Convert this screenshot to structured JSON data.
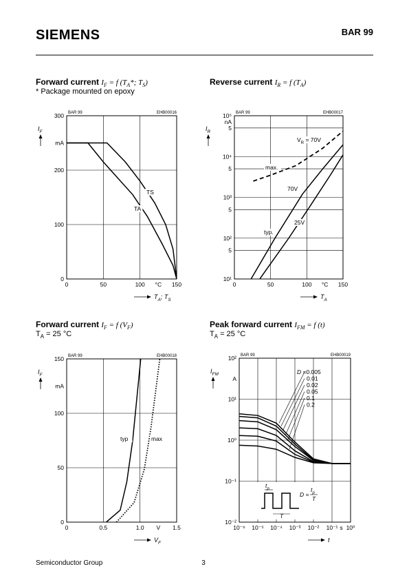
{
  "header": {
    "brand": "SIEMENS",
    "part": "BAR 99"
  },
  "footer": {
    "left": "Semiconductor Group",
    "page": "3"
  },
  "chart_data": [
    {
      "type": "line",
      "title": "Forward current",
      "formula": [
        {
          "text": "I",
          "sub": "F"
        },
        {
          "text": " = f (T",
          "sub": "A"
        },
        {
          "text": "*; T",
          "sub": "S"
        },
        {
          "text": ")"
        }
      ],
      "subtitle": [
        {
          "text": "* Package mounted on epoxy"
        }
      ],
      "part": "BAR 99",
      "code": "EHB00016",
      "ylabel": [
        {
          "text": "I",
          "sub": "F"
        }
      ],
      "xlabel": [
        {
          "text": "T",
          "sub": "A"
        },
        {
          "text": "; T",
          "sub": "S"
        }
      ],
      "y_unit": "mA",
      "x_unit": "°C",
      "xlim": [
        0,
        150
      ],
      "ylim": [
        0,
        300
      ],
      "xticks": [
        0,
        50,
        100,
        150
      ],
      "yticks": [
        0,
        100,
        200,
        300
      ],
      "grid": true,
      "series": [
        {
          "name": "TS",
          "color": "#000000",
          "style": "solid",
          "x": [
            0,
            55,
            80,
            100,
            120,
            135,
            145,
            150
          ],
          "values": [
            250,
            250,
            215,
            180,
            140,
            100,
            55,
            0
          ]
        },
        {
          "name": "TA",
          "color": "#000000",
          "style": "solid",
          "x": [
            0,
            29,
            50,
            70,
            90,
            110,
            130,
            145,
            150
          ],
          "values": [
            250,
            250,
            215,
            185,
            155,
            115,
            65,
            25,
            0
          ]
        }
      ]
    },
    {
      "type": "line",
      "title": "Reverse current",
      "formula": [
        {
          "text": "I",
          "sub": "R"
        },
        {
          "text": " = f (T",
          "sub": "A"
        },
        {
          "text": ")"
        }
      ],
      "part": "BAR 99",
      "code": "EHB00017",
      "ylabel": [
        {
          "text": "I",
          "sub": "R"
        }
      ],
      "xlabel": [
        {
          "text": "T",
          "sub": "A"
        }
      ],
      "y_unit": "nA",
      "x_unit": "°C",
      "xlim": [
        0,
        150
      ],
      "ylim": [
        10,
        100000
      ],
      "ylog": true,
      "xticks": [
        0,
        50,
        100,
        150
      ],
      "yticks": [
        {
          "value": 10,
          "label": "10¹"
        },
        {
          "value": 50,
          "label": "5"
        },
        {
          "value": 100,
          "label": "10²"
        },
        {
          "value": 500,
          "label": "5"
        },
        {
          "value": 1000,
          "label": "10³"
        },
        {
          "value": 5000,
          "label": "5"
        },
        {
          "value": 10000,
          "label": "10⁴"
        },
        {
          "value": 50000,
          "label": "5"
        },
        {
          "value": 100000,
          "label": "10⁵"
        }
      ],
      "grid": true,
      "annotations": [
        [
          {
            "text": "V",
            "sub": "R"
          },
          {
            "text": " = 70V"
          }
        ],
        [
          {
            "text": "typ."
          }
        ]
      ],
      "series": [
        {
          "name": "max.",
          "color": "#000000",
          "style": "dashed",
          "x": [
            26,
            50,
            85,
            122,
            150
          ],
          "values": [
            2500,
            3500,
            6000,
            16000,
            42000
          ]
        },
        {
          "name": "70V",
          "color": "#000000",
          "style": "solid",
          "x": [
            23,
            56,
            94,
            122,
            150
          ],
          "values": [
            10,
            100,
            1200,
            5000,
            19500
          ]
        },
        {
          "name": "25V",
          "color": "#000000",
          "style": "solid",
          "x": [
            35,
            75,
            104,
            132,
            150
          ],
          "values": [
            10,
            100,
            590,
            3400,
            11000
          ]
        }
      ]
    },
    {
      "type": "line",
      "title": "Forward current",
      "formula": [
        {
          "text": "I",
          "sub": "F"
        },
        {
          "text": " = f (V",
          "sub": "F"
        },
        {
          "text": ")"
        }
      ],
      "subtitle": [
        {
          "text": "T",
          "sub": "A"
        },
        {
          "text": " = 25 °C"
        }
      ],
      "part": "BAR 99",
      "code": "EHB00018",
      "ylabel": [
        {
          "text": "I",
          "sub": "F"
        }
      ],
      "xlabel": [
        {
          "text": "V",
          "sub": "F"
        }
      ],
      "y_unit": "mA",
      "x_unit": "V",
      "xlim": [
        0,
        1.5
      ],
      "ylim": [
        0,
        150
      ],
      "xticks": [
        0,
        0.5,
        {
          "value": 1,
          "label": "1.0"
        },
        1.5
      ],
      "yticks": [
        0,
        50,
        100,
        150
      ],
      "grid": true,
      "series": [
        {
          "name": "typ",
          "color": "#000000",
          "style": "solid",
          "x": [
            0.54,
            0.73,
            0.82,
            0.9,
            1.01
          ],
          "values": [
            0,
            11,
            37,
            75,
            150
          ]
        },
        {
          "name": "max",
          "color": "#000000",
          "style": "dotted",
          "x": [
            0.68,
            0.92,
            1.06,
            1.15,
            1.27
          ],
          "values": [
            0,
            18,
            49,
            87,
            150
          ]
        }
      ]
    },
    {
      "type": "line",
      "title": "Peak forward current",
      "formula": [
        {
          "text": "I",
          "sub": "FM"
        },
        {
          "text": " = f (t)"
        }
      ],
      "subtitle": [
        {
          "text": "T",
          "sub": "A"
        },
        {
          "text": " = 25 °C"
        }
      ],
      "part": "BAR 99",
      "code": "EHB00019",
      "ylabel": [
        {
          "text": "I",
          "sub": "FM"
        }
      ],
      "xlabel": [
        {
          "text": "t"
        }
      ],
      "y_unit": "A",
      "x_unit": "s",
      "xlim": [
        1e-06,
        1
      ],
      "ylim": [
        0.01,
        100
      ],
      "xlog": true,
      "ylog": true,
      "xticks": [
        {
          "value": 1e-06,
          "label": "10⁻⁶"
        },
        {
          "value": 1e-05,
          "label": "10⁻⁵"
        },
        {
          "value": 0.0001,
          "label": "10⁻⁴"
        },
        {
          "value": 0.001,
          "label": "10⁻³"
        },
        {
          "value": 0.01,
          "label": "10⁻²"
        },
        {
          "value": 0.1,
          "label": "10⁻¹"
        },
        {
          "value": 1,
          "label": "10⁰"
        }
      ],
      "yticks": [
        {
          "value": 0.01,
          "label": "10⁻²"
        },
        {
          "value": 0.1,
          "label": "10⁻¹"
        },
        {
          "value": 1,
          "label": "10⁰"
        },
        {
          "value": 10,
          "label": "10¹"
        },
        {
          "value": 100,
          "label": "10²"
        }
      ],
      "grid": true,
      "legend_prefix": "D =",
      "inset": {
        "pulse_width": [
          {
            "text": "t",
            "sub": "p"
          }
        ],
        "period": "T",
        "duty": "D =",
        "duty_num": [
          {
            "text": "t",
            "sub": "p"
          }
        ],
        "duty_den": "T"
      },
      "x": [
        1e-06,
        1e-05,
        0.0001,
        0.001,
        0.01,
        0.1,
        1
      ],
      "series": [
        {
          "name": "0.005",
          "color": "#000000",
          "style": "solid",
          "values": [
            4.4,
            4.0,
            2.6,
            0.9,
            0.35,
            0.27,
            0.27
          ]
        },
        {
          "name": "0.01",
          "color": "#000000",
          "style": "solid",
          "values": [
            3.8,
            3.5,
            2.2,
            0.8,
            0.33,
            0.27,
            0.27
          ]
        },
        {
          "name": "0.02",
          "color": "#000000",
          "style": "solid",
          "values": [
            3.0,
            2.8,
            1.8,
            0.7,
            0.32,
            0.27,
            0.27
          ]
        },
        {
          "name": "0.05",
          "color": "#000000",
          "style": "solid",
          "values": [
            2.0,
            1.9,
            1.3,
            0.55,
            0.3,
            0.27,
            0.27
          ]
        },
        {
          "name": "0.1",
          "color": "#000000",
          "style": "solid",
          "values": [
            1.3,
            1.25,
            0.95,
            0.45,
            0.29,
            0.27,
            0.27
          ]
        },
        {
          "name": "0.2",
          "color": "#000000",
          "style": "solid",
          "values": [
            0.75,
            0.72,
            0.6,
            0.38,
            0.28,
            0.27,
            0.27
          ]
        }
      ]
    }
  ]
}
